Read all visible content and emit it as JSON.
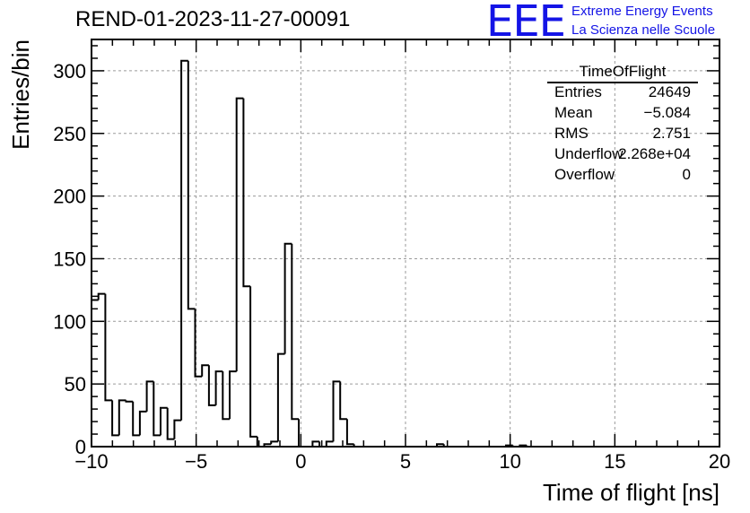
{
  "header": {
    "run_title": "REND-01-2023-11-27-00091",
    "logo_text": "EEE",
    "logo_line1": "Extreme Energy Events",
    "logo_line2": "La Scienza nelle Scuole",
    "accent_color": "#1414e6"
  },
  "stats_box": {
    "title": "TimeOfFlight",
    "rows": [
      {
        "key": "Entries",
        "value": "24649"
      },
      {
        "key": "Mean",
        "value": "−5.084"
      },
      {
        "key": "RMS",
        "value": "2.751"
      },
      {
        "key": "Underflow",
        "value": "2.268e+04"
      },
      {
        "key": "Overflow",
        "value": "0"
      }
    ]
  },
  "chart_data": {
    "type": "bar",
    "title": "REND-01-2023-11-27-00091",
    "xlabel": "Time of flight [ns]",
    "ylabel": "Entries/bin",
    "xlim": [
      -10,
      20
    ],
    "ylim": [
      0,
      325
    ],
    "x_ticks": [
      -10,
      -5,
      0,
      5,
      10,
      15,
      20
    ],
    "x_tick_labels": [
      "−10",
      "−5",
      "0",
      "5",
      "10",
      "15",
      "20"
    ],
    "y_ticks": [
      0,
      50,
      100,
      150,
      200,
      250,
      300
    ],
    "y_tick_labels": [
      "0",
      "50",
      "100",
      "150",
      "200",
      "250",
      "300"
    ],
    "grid": true,
    "bin_width": 0.33,
    "bins": [
      {
        "x_low": -10.0,
        "value": 117
      },
      {
        "x_low": -9.67,
        "value": 122
      },
      {
        "x_low": -9.34,
        "value": 37
      },
      {
        "x_low": -9.01,
        "value": 9
      },
      {
        "x_low": -8.68,
        "value": 37
      },
      {
        "x_low": -8.35,
        "value": 36
      },
      {
        "x_low": -8.02,
        "value": 9
      },
      {
        "x_low": -7.69,
        "value": 28
      },
      {
        "x_low": -7.36,
        "value": 52
      },
      {
        "x_low": -7.03,
        "value": 9
      },
      {
        "x_low": -6.7,
        "value": 31
      },
      {
        "x_low": -6.37,
        "value": 6
      },
      {
        "x_low": -6.04,
        "value": 21
      },
      {
        "x_low": -5.71,
        "value": 308
      },
      {
        "x_low": -5.38,
        "value": 110
      },
      {
        "x_low": -5.05,
        "value": 56
      },
      {
        "x_low": -4.72,
        "value": 65
      },
      {
        "x_low": -4.39,
        "value": 33
      },
      {
        "x_low": -4.06,
        "value": 60
      },
      {
        "x_low": -3.73,
        "value": 22
      },
      {
        "x_low": -3.4,
        "value": 60
      },
      {
        "x_low": -3.07,
        "value": 278
      },
      {
        "x_low": -2.74,
        "value": 128
      },
      {
        "x_low": -2.41,
        "value": 8
      },
      {
        "x_low": -2.08,
        "value": 0
      },
      {
        "x_low": -1.75,
        "value": 2
      },
      {
        "x_low": -1.42,
        "value": 4
      },
      {
        "x_low": -1.09,
        "value": 74
      },
      {
        "x_low": -0.76,
        "value": 162
      },
      {
        "x_low": -0.43,
        "value": 22
      },
      {
        "x_low": -0.1,
        "value": 0
      },
      {
        "x_low": 0.23,
        "value": 0
      },
      {
        "x_low": 0.56,
        "value": 4
      },
      {
        "x_low": 0.89,
        "value": 0
      },
      {
        "x_low": 1.22,
        "value": 4
      },
      {
        "x_low": 1.55,
        "value": 52
      },
      {
        "x_low": 1.88,
        "value": 22
      },
      {
        "x_low": 2.21,
        "value": 2
      },
      {
        "x_low": 2.54,
        "value": 0
      },
      {
        "x_low": 2.87,
        "value": 0
      },
      {
        "x_low": 3.2,
        "value": 0
      },
      {
        "x_low": 3.53,
        "value": 0
      },
      {
        "x_low": 3.86,
        "value": 0
      },
      {
        "x_low": 4.19,
        "value": 0
      },
      {
        "x_low": 4.52,
        "value": 0
      },
      {
        "x_low": 4.85,
        "value": 0
      },
      {
        "x_low": 5.18,
        "value": 0
      },
      {
        "x_low": 5.51,
        "value": 0
      },
      {
        "x_low": 5.84,
        "value": 0
      },
      {
        "x_low": 6.17,
        "value": 0
      },
      {
        "x_low": 6.5,
        "value": 2
      },
      {
        "x_low": 6.83,
        "value": 0
      },
      {
        "x_low": 7.16,
        "value": 0
      },
      {
        "x_low": 7.49,
        "value": 0
      },
      {
        "x_low": 7.82,
        "value": 0
      },
      {
        "x_low": 8.15,
        "value": 0
      },
      {
        "x_low": 8.48,
        "value": 0
      },
      {
        "x_low": 8.81,
        "value": 0
      },
      {
        "x_low": 9.14,
        "value": 0
      },
      {
        "x_low": 9.47,
        "value": 0
      },
      {
        "x_low": 9.8,
        "value": 1
      },
      {
        "x_low": 10.13,
        "value": 0
      },
      {
        "x_low": 10.46,
        "value": 1
      }
    ]
  }
}
